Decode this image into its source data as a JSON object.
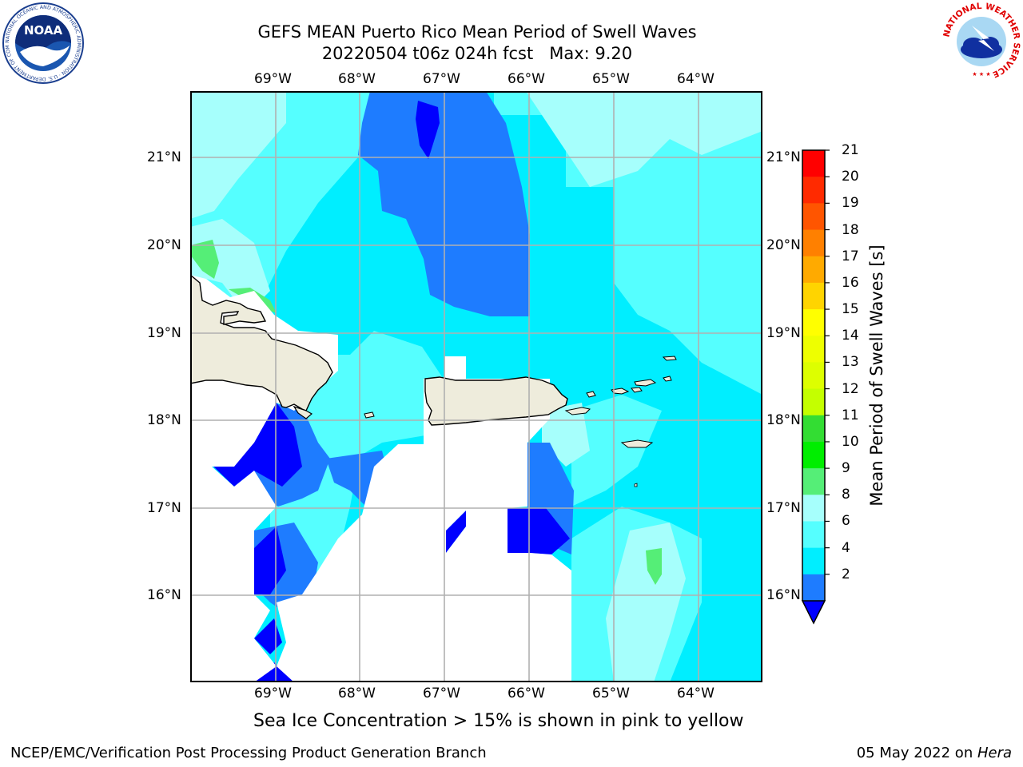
{
  "header": {
    "title_line1": "GEFS MEAN Puerto Rico Mean Period of Swell Waves",
    "title_line2": "20220504 t06z 024h fcst   Max: 9.20"
  },
  "logos": {
    "noaa_text": "NOAA",
    "noaa_ring_text": "NATIONAL OCEANIC AND ATMOSPHERIC ADMINISTRATION · U.S. DEPARTMENT OF COMMERCE ·",
    "nws_ring_text": "NATIONAL WEATHER SERVICE"
  },
  "map": {
    "lon_labels": [
      "69°W",
      "68°W",
      "67°W",
      "66°W",
      "65°W",
      "64°W"
    ],
    "lat_labels": [
      "21°N",
      "20°N",
      "19°N",
      "18°N",
      "17°N",
      "16°N"
    ],
    "land_color": "#eeecdc",
    "grid_color": "#b0b0b0"
  },
  "colorbar": {
    "label": "Mean Period of Swell Waves [s]",
    "ticks": [
      "21",
      "20",
      "19",
      "18",
      "17",
      "16",
      "15",
      "14",
      "13",
      "12",
      "11",
      "10",
      "9",
      "8",
      "6",
      "4",
      "2"
    ],
    "colors": [
      "#ff0000",
      "#ff2a00",
      "#ff5500",
      "#ff8000",
      "#ffaa00",
      "#ffd400",
      "#ffff00",
      "#eeff00",
      "#ddff00",
      "#c4ff00",
      "#33dd33",
      "#00ee00",
      "#55ee77",
      "#a6fffc",
      "#55ffff",
      "#00eeff",
      "#1e7cff"
    ],
    "under_color": "#0000ff"
  },
  "notes": {
    "ice": "Sea Ice Concentration > 15% is shown in pink to yellow"
  },
  "footer": {
    "left": "NCEP/EMC/Verification Post Processing Product Generation Branch",
    "date": "05 May 2022 on ",
    "machine": "Hera"
  }
}
